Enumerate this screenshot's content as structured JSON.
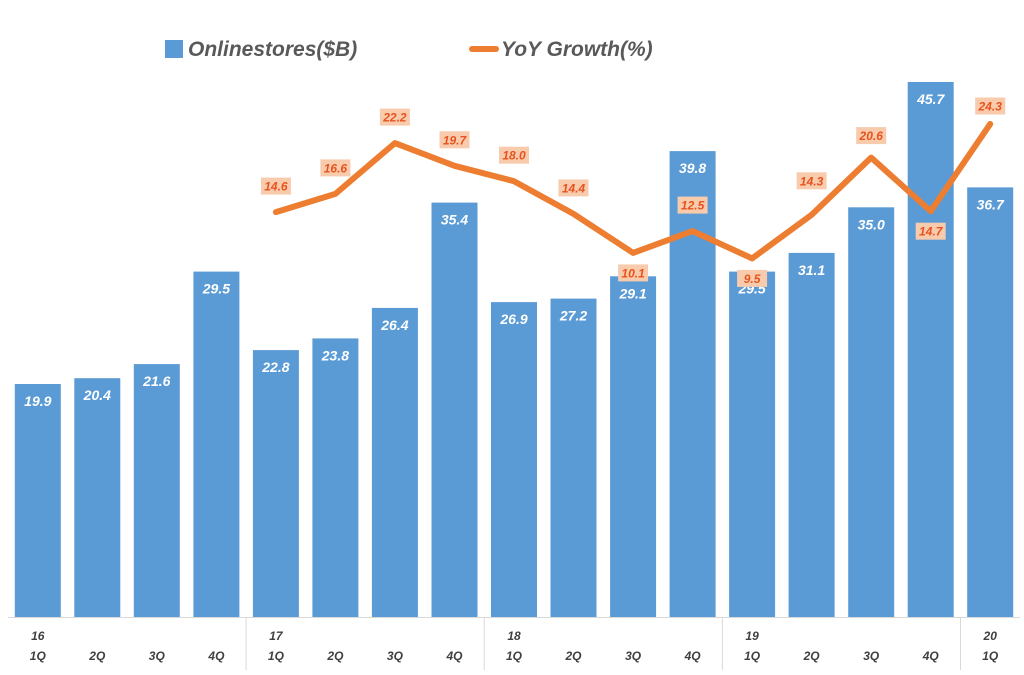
{
  "chart_data": {
    "type": "bar",
    "title": "",
    "xlabel": "",
    "ylabel": "",
    "categories": [
      "16 1Q",
      "2Q",
      "3Q",
      "4Q",
      "17 1Q",
      "2Q",
      "3Q",
      "4Q",
      "18 1Q",
      "2Q",
      "3Q",
      "4Q",
      "19 1Q",
      "2Q",
      "3Q",
      "4Q",
      "20 1Q"
    ],
    "year_labels": [
      "16",
      "",
      "",
      "",
      "17",
      "",
      "",
      "",
      "18",
      "",
      "",
      "",
      "19",
      "",
      "",
      "",
      "20"
    ],
    "quarter_labels": [
      "1Q",
      "2Q",
      "3Q",
      "4Q",
      "1Q",
      "2Q",
      "3Q",
      "4Q",
      "1Q",
      "2Q",
      "3Q",
      "4Q",
      "1Q",
      "2Q",
      "3Q",
      "4Q",
      "1Q"
    ],
    "series": [
      {
        "name": "Onlinestores($B)",
        "type": "bar",
        "color": "#5b9bd5",
        "values": [
          19.9,
          20.4,
          21.6,
          29.5,
          22.8,
          23.8,
          26.4,
          35.4,
          26.9,
          27.2,
          29.1,
          39.8,
          29.5,
          31.1,
          35.0,
          45.7,
          36.7
        ],
        "labels": [
          "19.9",
          "20.4",
          "21.6",
          "29.5",
          "22.8",
          "23.8",
          "26.4",
          "35.4",
          "26.9",
          "27.2",
          "29.1",
          "39.8",
          "29.5",
          "31.1",
          "35.0",
          "45.7",
          "36.7"
        ]
      },
      {
        "name": "YoY Growth(%)",
        "type": "line",
        "color": "#ed7d31",
        "values": [
          null,
          null,
          null,
          null,
          14.6,
          16.6,
          22.2,
          19.7,
          18.0,
          14.4,
          10.1,
          12.5,
          9.5,
          14.3,
          20.6,
          14.7,
          24.3
        ],
        "labels": [
          "",
          "",
          "",
          "",
          "14.6",
          "16.6",
          "22.2",
          "19.7",
          "18.0",
          "14.4",
          "10.1",
          "12.5",
          "9.5",
          "14.3",
          "20.6",
          "14.7",
          "24.3"
        ]
      }
    ],
    "ylim_bar": [
      0,
      46.5
    ],
    "ylim_line": [
      -30,
      33
    ],
    "grid": false,
    "legend": "top"
  }
}
